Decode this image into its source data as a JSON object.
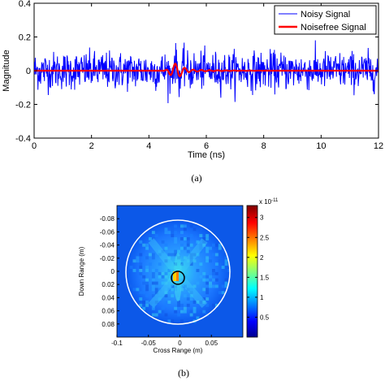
{
  "chart_data": [
    {
      "type": "line",
      "xlabel": "Time (ns)",
      "ylabel": "Magnitude",
      "xlim": [
        0,
        12
      ],
      "ylim": [
        -0.4,
        0.4
      ],
      "xticks": [
        "0",
        "2",
        "4",
        "6",
        "8",
        "10",
        "12"
      ],
      "yticks": [
        "0.4",
        "0.2",
        "0",
        "-0.2",
        "-0.4"
      ],
      "grid": false,
      "legend_position": "top-right",
      "series": [
        {
          "name": "Noisy Signal",
          "color": "#0000ff",
          "noise_amplitude_approx": 0.1
        },
        {
          "name": "Noisefree Signal",
          "color": "#ff0000",
          "values_approx": {
            "baseline": 0.0,
            "peak_time": 4.9,
            "peak_value": 0.04
          }
        }
      ],
      "caption": "(a)"
    },
    {
      "type": "heatmap",
      "xlabel": "Cross Range (m)",
      "ylabel": "Down Range (m)",
      "xticks": [
        "-0.1",
        "-0.05",
        "0",
        "0.05"
      ],
      "yticks": [
        "-0.08",
        "-0.06",
        "-0.04",
        "-0.02",
        "0",
        "0.02",
        "0.04",
        "0.06",
        "0.08"
      ],
      "xlim": [
        -0.1,
        0.1
      ],
      "ylim": [
        -0.1,
        0.1
      ],
      "colorbar": {
        "ticks": [
          "0.5",
          "1",
          "1.5",
          "2",
          "2.5",
          "3"
        ],
        "range": [
          0,
          3.3
        ],
        "multiplier": "x 10",
        "exponent": "-11",
        "colormap": "jet"
      },
      "caption": "(b)"
    }
  ]
}
